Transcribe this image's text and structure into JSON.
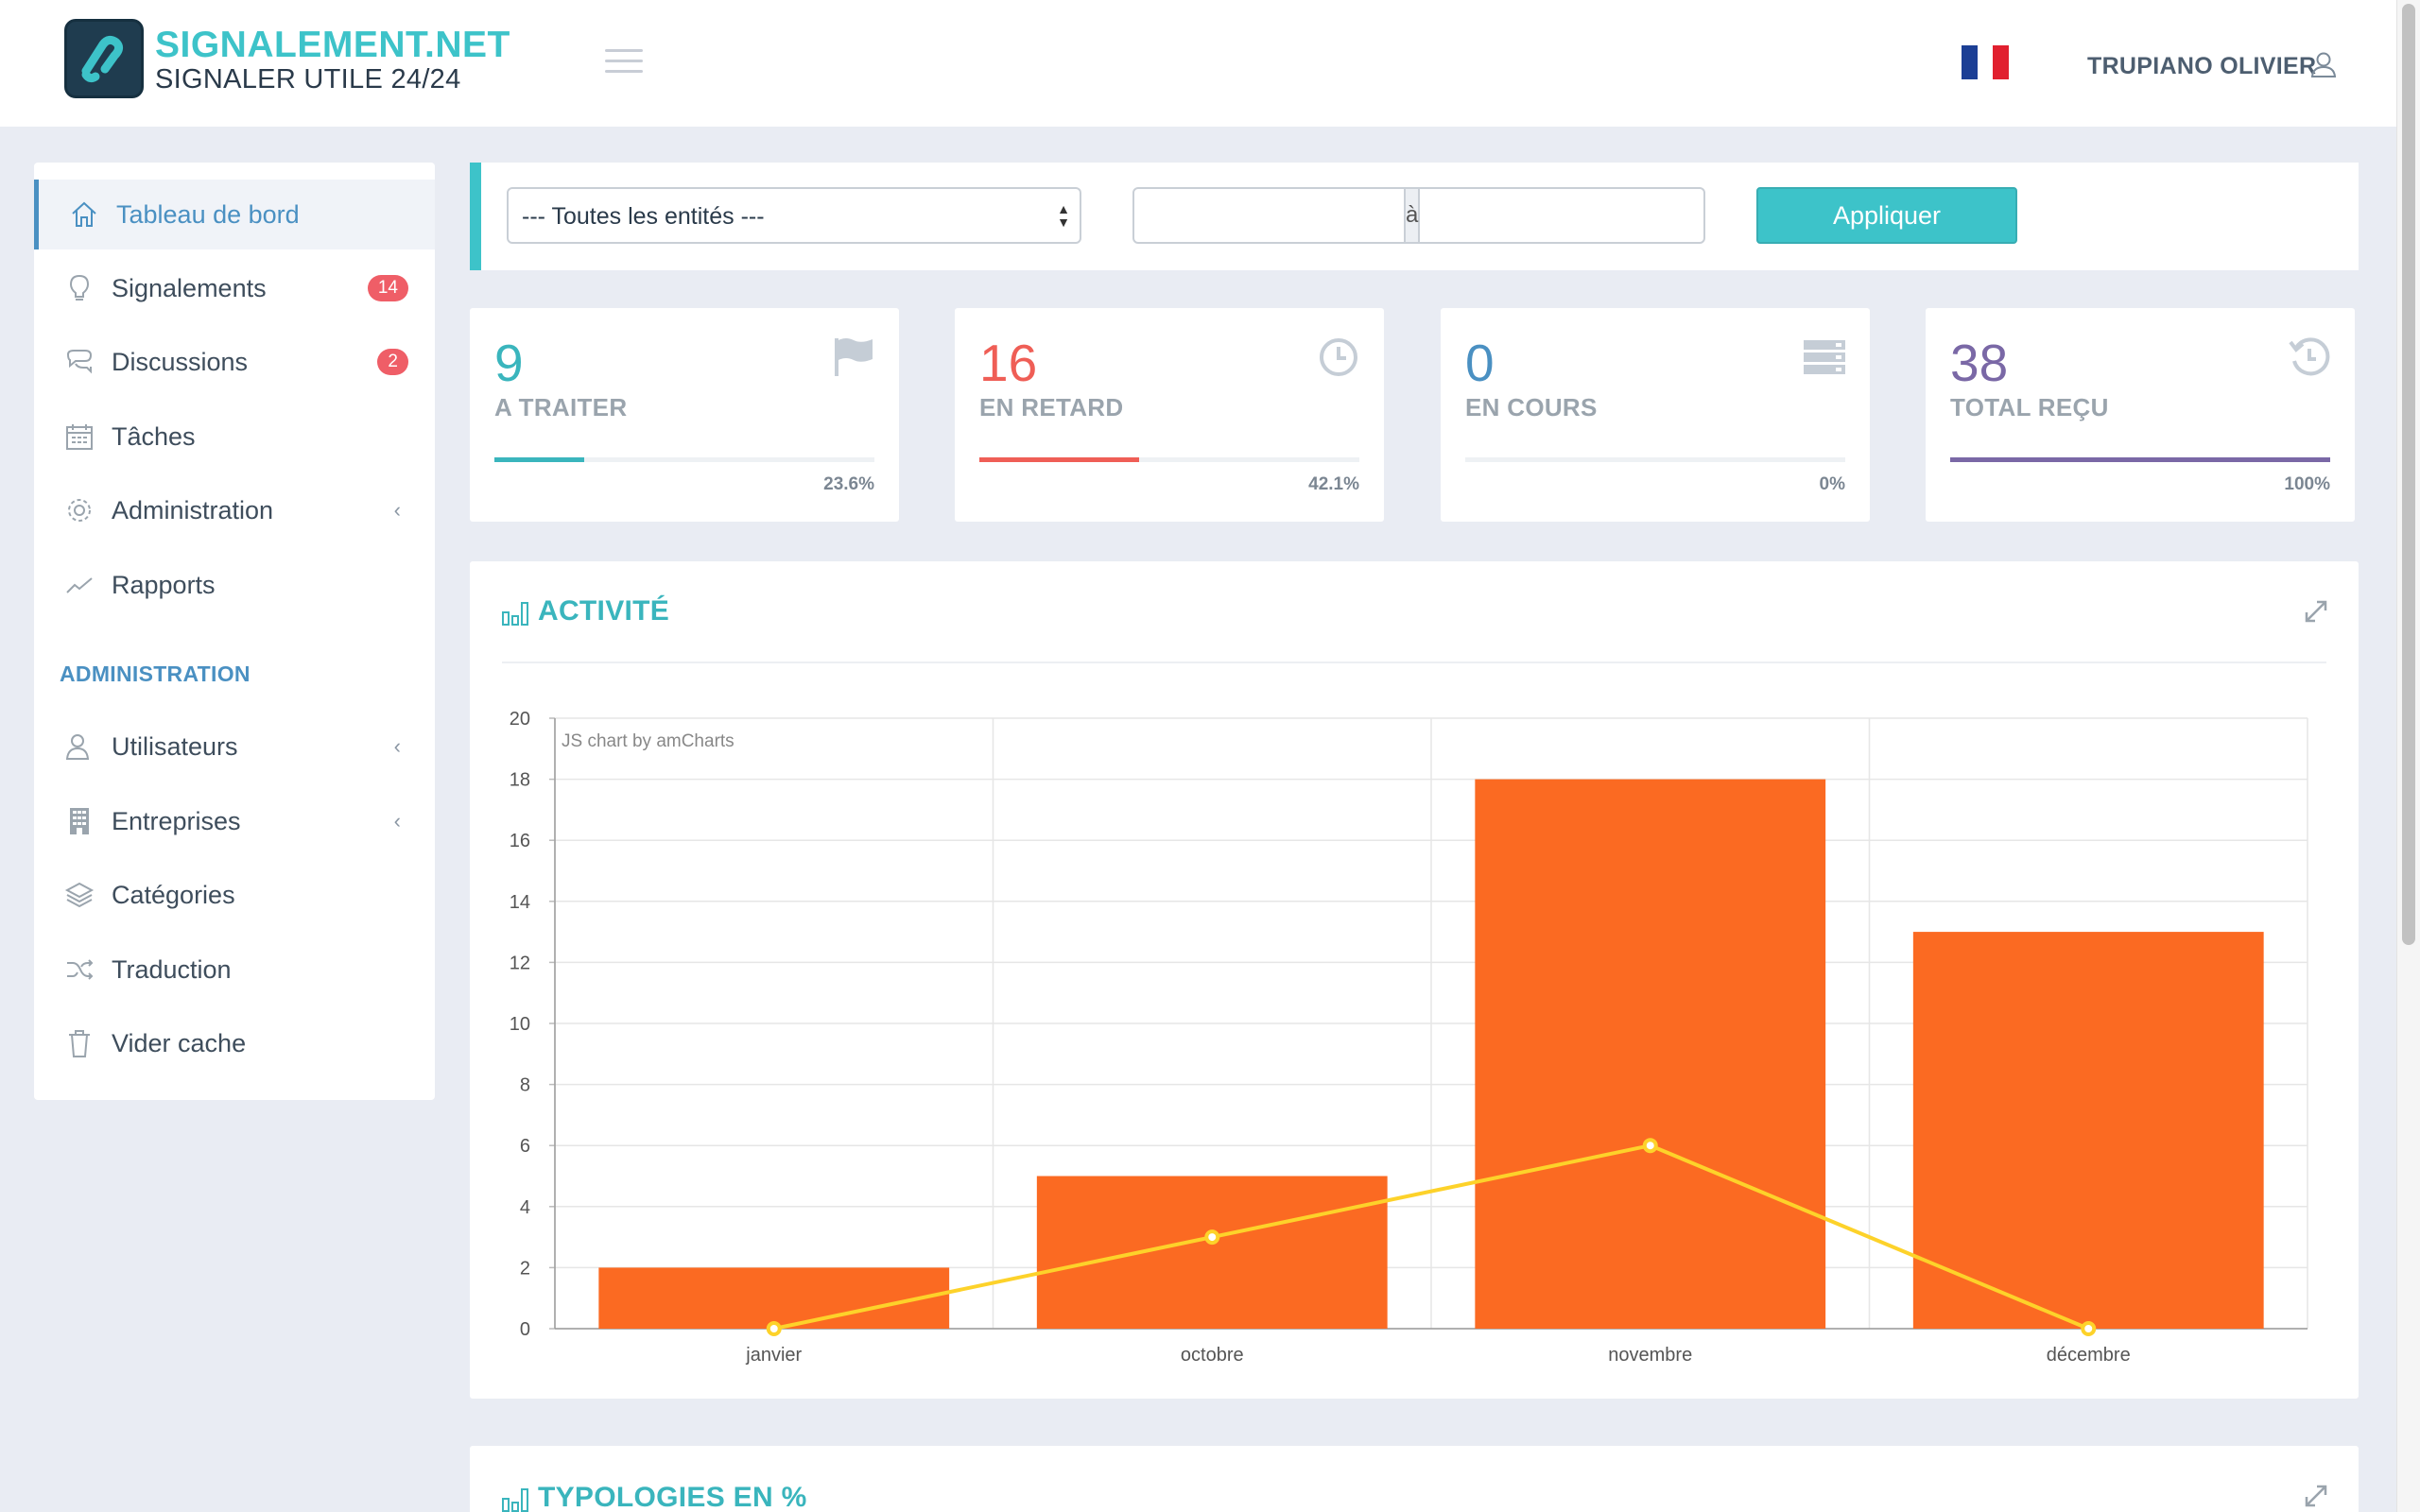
{
  "header": {
    "logo_title": "SIGNALEMENT.NET",
    "logo_subtitle": "SIGNALER UTILE 24/24",
    "user_name": "TRUPIANO OLIVIER",
    "flag_colors": [
      "#1c3f95",
      "#ffffff",
      "#e1202f"
    ]
  },
  "sidebar": {
    "items": [
      {
        "label": "Tableau de bord",
        "icon": "home-icon",
        "active": true
      },
      {
        "label": "Signalements",
        "icon": "lightbulb-icon",
        "badge": "14"
      },
      {
        "label": "Discussions",
        "icon": "chat-icon",
        "badge": "2"
      },
      {
        "label": "Tâches",
        "icon": "calendar-icon"
      },
      {
        "label": "Administration",
        "icon": "gear-icon",
        "chevron": "‹"
      },
      {
        "label": "Rapports",
        "icon": "trend-icon"
      }
    ],
    "section_title": "ADMINISTRATION",
    "admin_items": [
      {
        "label": "Utilisateurs",
        "icon": "users-icon",
        "chevron": "‹"
      },
      {
        "label": "Entreprises",
        "icon": "building-icon",
        "chevron": "‹"
      },
      {
        "label": "Catégories",
        "icon": "layers-icon"
      },
      {
        "label": "Traduction",
        "icon": "shuffle-icon"
      },
      {
        "label": "Vider cache",
        "icon": "trash-icon"
      }
    ]
  },
  "filter": {
    "entity_select": "--- Toutes les entités ---",
    "date_separator": "à",
    "date_from": "",
    "date_to": "",
    "apply_label": "Appliquer"
  },
  "stats": [
    {
      "value": "9",
      "label": "A TRAITER",
      "percent": "23.6%",
      "fraction": 0.236,
      "color": "#3ab5bd",
      "icon": "flag-icon"
    },
    {
      "value": "16",
      "label": "EN RETARD",
      "percent": "42.1%",
      "fraction": 0.421,
      "color": "#ef5e56",
      "icon": "clock-icon"
    },
    {
      "value": "0",
      "label": "EN COURS",
      "percent": "0%",
      "fraction": 0,
      "color": "#4a90c2",
      "icon": "server-icon"
    },
    {
      "value": "38",
      "label": "TOTAL REÇU",
      "percent": "100%",
      "fraction": 1,
      "color": "#7a68a6",
      "icon": "history-icon"
    }
  ],
  "activity": {
    "title": "ACTIVITÉ",
    "credit": "JS chart by amCharts"
  },
  "typologies": {
    "title": "TYPOLOGIES EN %"
  },
  "chart_data": {
    "type": "bar",
    "categories": [
      "janvier",
      "octobre",
      "novembre",
      "décembre"
    ],
    "series": [
      {
        "type": "bar",
        "values": [
          2,
          5,
          18,
          13
        ],
        "color": "#fb6a22"
      },
      {
        "type": "line",
        "values": [
          0,
          3,
          6,
          0
        ],
        "color": "#fdd22a"
      }
    ],
    "ylim": [
      0,
      20
    ],
    "yticks": [
      0,
      2,
      4,
      6,
      8,
      10,
      12,
      14,
      16,
      18,
      20
    ],
    "grid": true
  }
}
